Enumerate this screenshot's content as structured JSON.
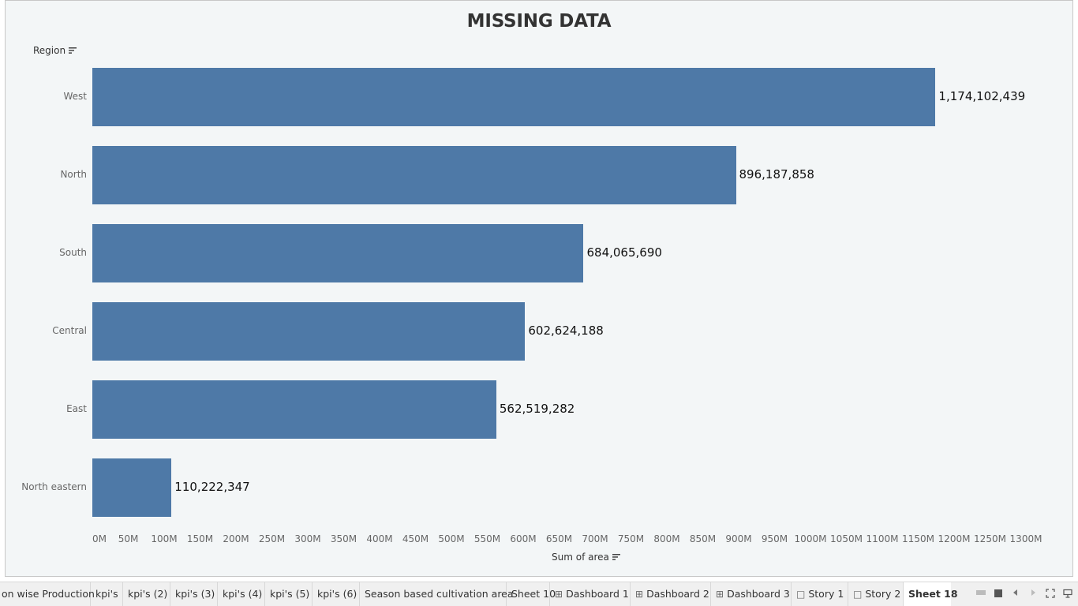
{
  "chart_data": {
    "type": "bar",
    "orientation": "horizontal",
    "title": "MISSING DATA",
    "ylabel": "Region",
    "xlabel": "Sum of area",
    "categories": [
      "West",
      "North",
      "South",
      "Central",
      "East",
      "North eastern"
    ],
    "values": [
      1174102439,
      896187858,
      684065690,
      602624188,
      562519282,
      110222347
    ],
    "value_labels": [
      "1,174,102,439",
      "896,187,858",
      "684,065,690",
      "602,624,188",
      "562,519,282",
      "110,222,347"
    ],
    "xlim": [
      0,
      1300000000
    ],
    "ticks": [
      "0M",
      "50M",
      "100M",
      "150M",
      "200M",
      "250M",
      "300M",
      "350M",
      "400M",
      "450M",
      "500M",
      "550M",
      "600M",
      "650M",
      "700M",
      "750M",
      "800M",
      "850M",
      "900M",
      "950M",
      "1000M",
      "1050M",
      "1100M",
      "1150M",
      "1200M",
      "1250M",
      "1300M"
    ],
    "bar_color": "#4e79a7",
    "grid": false
  },
  "tabs": [
    {
      "label": "on wise Production",
      "icon": ""
    },
    {
      "label": "kpi's",
      "icon": ""
    },
    {
      "label": "kpi's (2)",
      "icon": ""
    },
    {
      "label": "kpi's (3)",
      "icon": ""
    },
    {
      "label": "kpi's (4)",
      "icon": ""
    },
    {
      "label": "kpi's (5)",
      "icon": ""
    },
    {
      "label": "kpi's (6)",
      "icon": ""
    },
    {
      "label": "Season based cultivation area",
      "icon": ""
    },
    {
      "label": "Sheet 10",
      "icon": ""
    },
    {
      "label": "Dashboard 1",
      "icon": "dashboard-icon"
    },
    {
      "label": "Dashboard 2",
      "icon": "dashboard-icon"
    },
    {
      "label": "Dashboard 3",
      "icon": "dashboard-icon"
    },
    {
      "label": "Story 1",
      "icon": "story-icon"
    },
    {
      "label": "Story 2",
      "icon": "story-icon"
    },
    {
      "label": "Sheet 18",
      "icon": "",
      "active": true
    }
  ],
  "colors": {
    "background": "#f3f6f7",
    "bar": "#4e79a7",
    "tabbar": "#f0f0f0"
  }
}
